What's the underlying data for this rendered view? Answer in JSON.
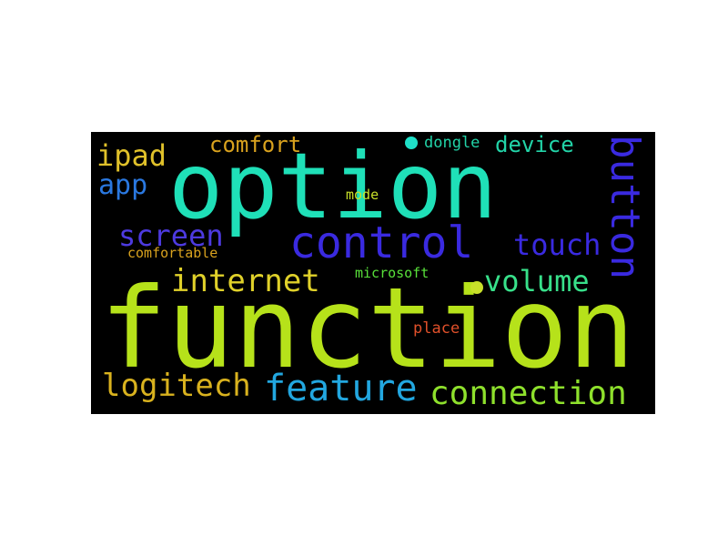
{
  "word_cloud": {
    "background": "#000000",
    "words": [
      {
        "key": "function",
        "text": "function",
        "color": "#b6e21a"
      },
      {
        "key": "option",
        "text": "option",
        "color": "#1fe0b8"
      },
      {
        "key": "control",
        "text": "control",
        "color": "#3a2ae0"
      },
      {
        "key": "button",
        "text": "button",
        "color": "#3a2ae0"
      },
      {
        "key": "feature",
        "text": "feature",
        "color": "#22a7e0"
      },
      {
        "key": "connection",
        "text": "connection",
        "color": "#8ee02c"
      },
      {
        "key": "logitech",
        "text": "logitech",
        "color": "#d9b21e"
      },
      {
        "key": "internet",
        "text": "internet",
        "color": "#e0d12a"
      },
      {
        "key": "volume",
        "text": "volume",
        "color": "#38e08a"
      },
      {
        "key": "screen",
        "text": "screen",
        "color": "#4d3ae0"
      },
      {
        "key": "touch",
        "text": "touch",
        "color": "#3a2ae0"
      },
      {
        "key": "ipad",
        "text": "ipad",
        "color": "#e0c12a"
      },
      {
        "key": "app",
        "text": "app",
        "color": "#2a78e0"
      },
      {
        "key": "comfort",
        "text": "comfort",
        "color": "#d9a21e"
      },
      {
        "key": "device",
        "text": "device",
        "color": "#22d4a8"
      },
      {
        "key": "dongle",
        "text": "dongle",
        "color": "#22d4a8"
      },
      {
        "key": "mode",
        "text": "mode",
        "color": "#c8e02a"
      },
      {
        "key": "comfortable",
        "text": "comfortable",
        "color": "#d9a21e"
      },
      {
        "key": "microsoft",
        "text": "microsoft",
        "color": "#58e03a"
      },
      {
        "key": "place",
        "text": "place",
        "color": "#e0502a"
      }
    ],
    "dots": [
      {
        "key": "dot_top",
        "color": "#1fe0c8"
      },
      {
        "key": "dot_middle",
        "color": "#c8e02a"
      }
    ]
  }
}
